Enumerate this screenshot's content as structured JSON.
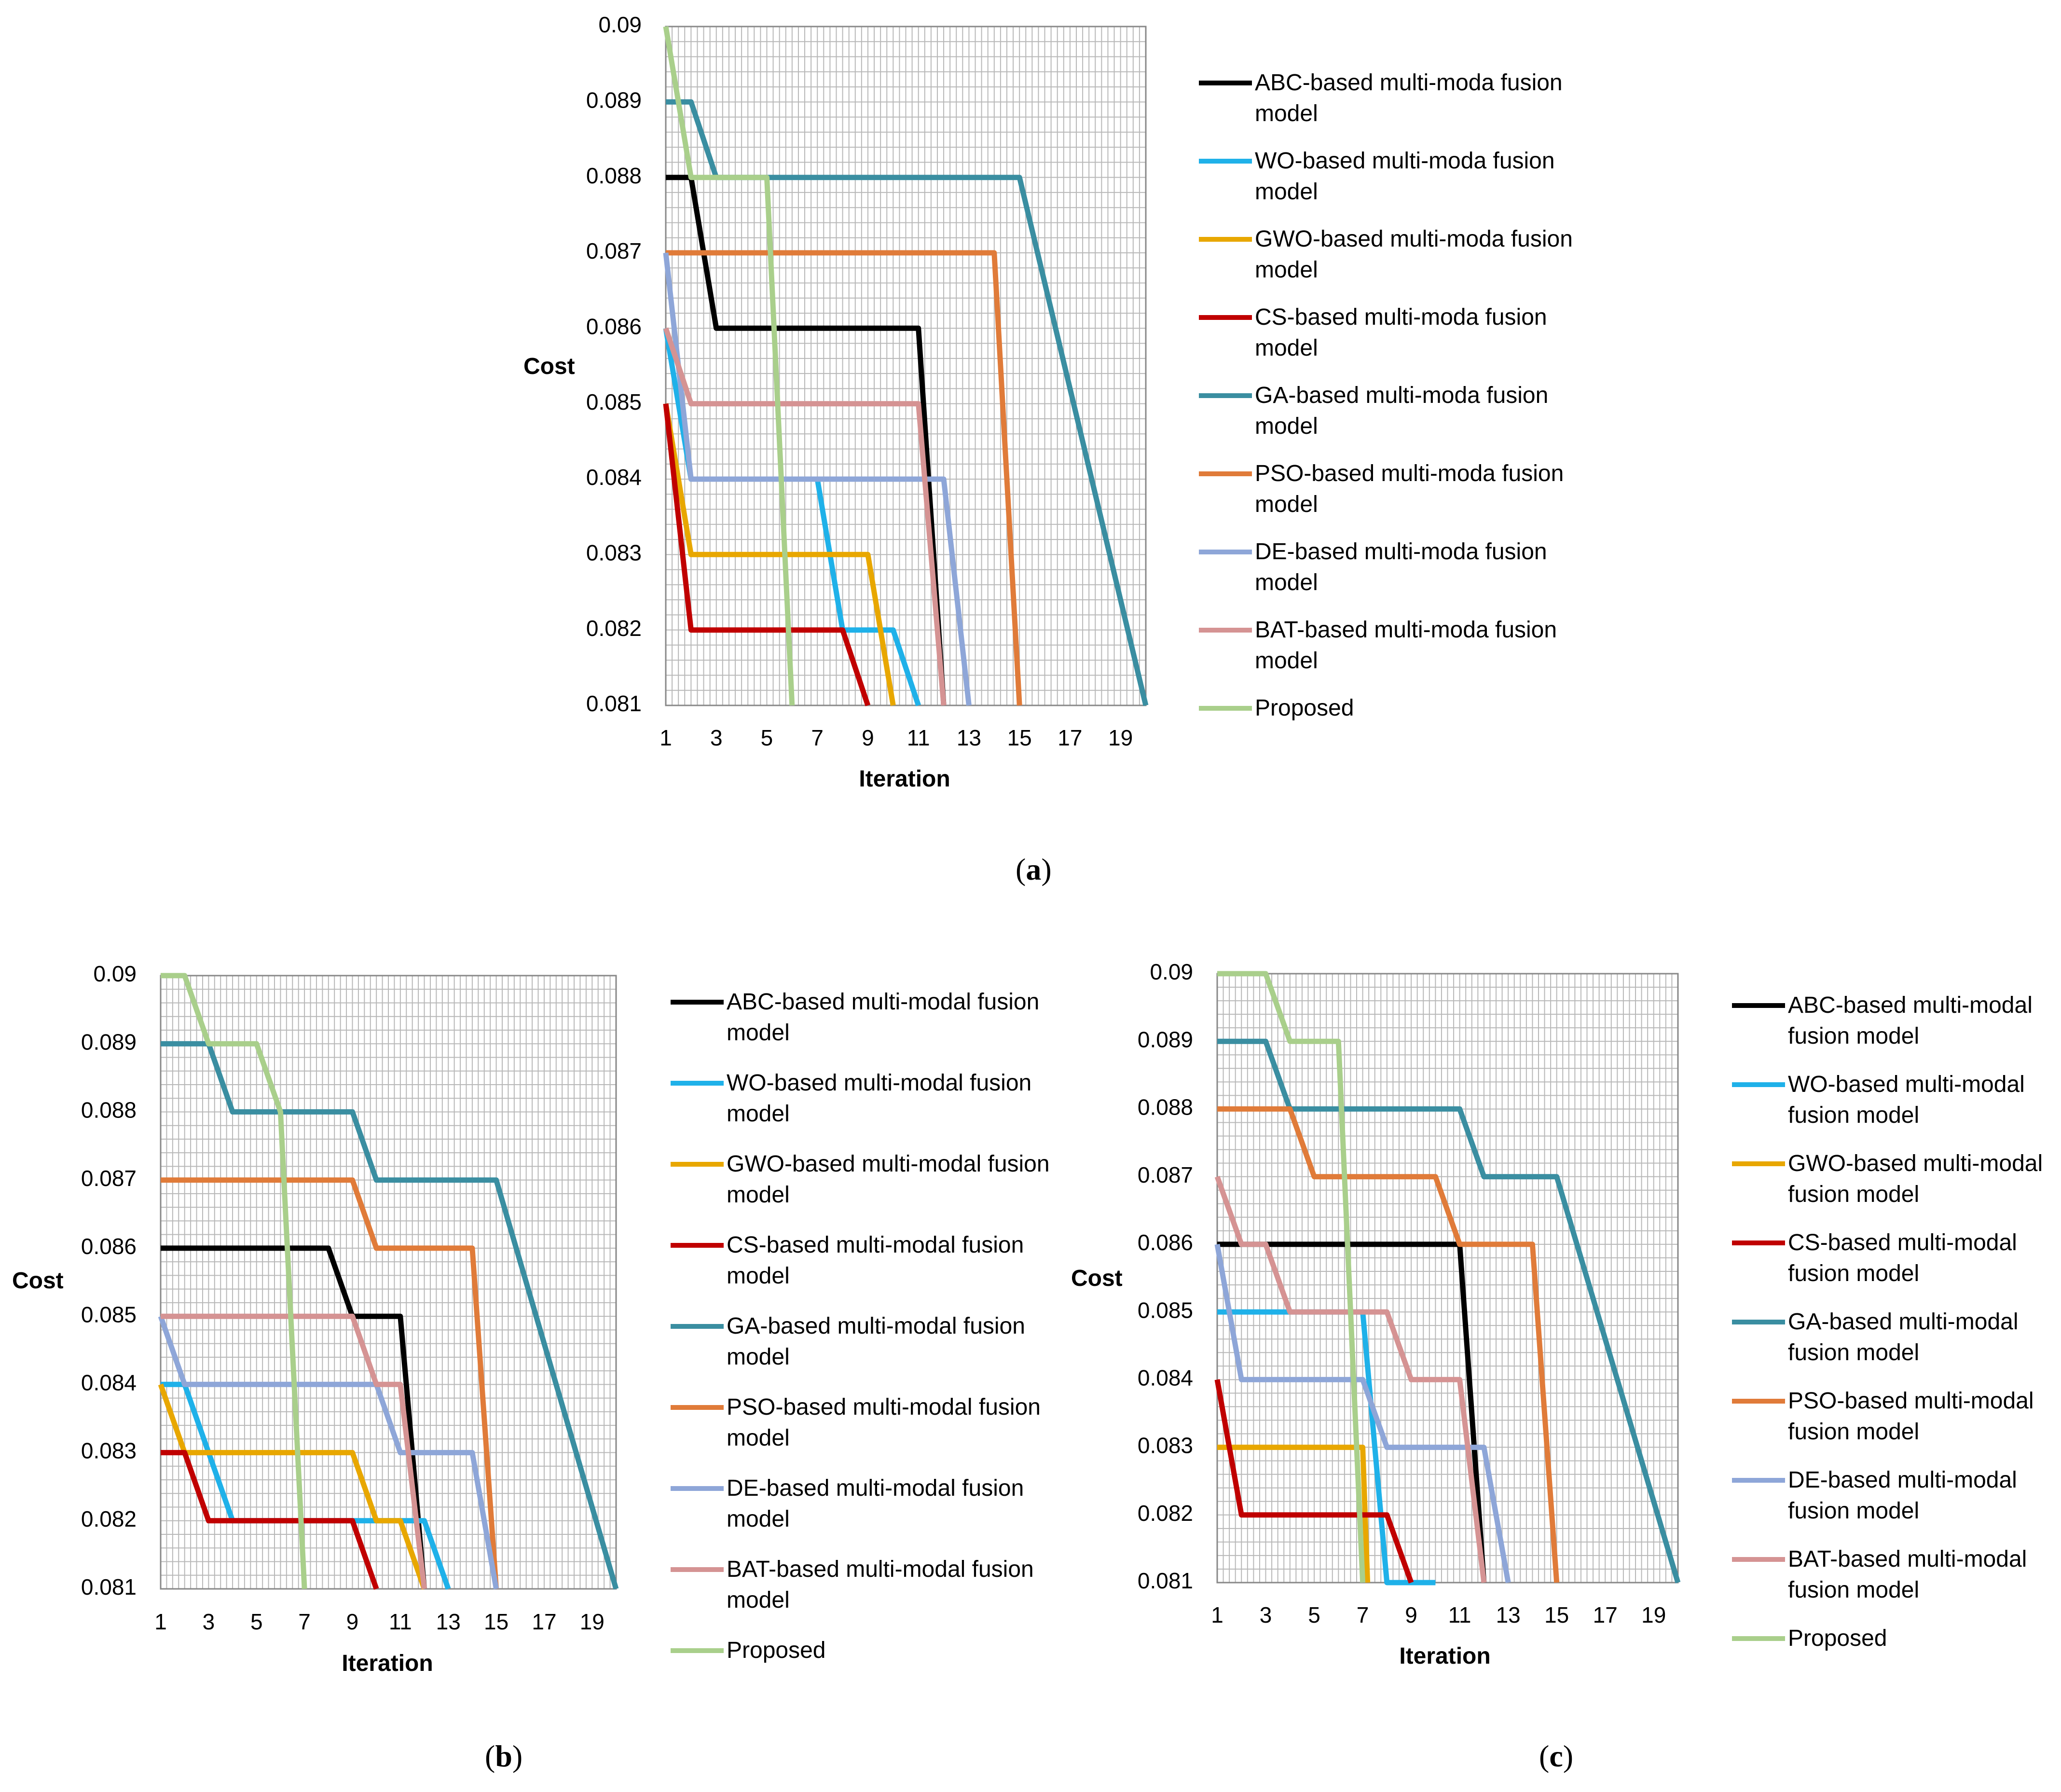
{
  "captions": [
    {
      "open": "(",
      "letter": "a",
      "close": ")"
    },
    {
      "open": "(",
      "letter": "b",
      "close": ")"
    },
    {
      "open": "(",
      "letter": "c",
      "close": ")"
    }
  ],
  "colors": {
    "abc": "#000000",
    "wo": "#1fb1e9",
    "gwo": "#e8a700",
    "cs": "#c00000",
    "ga": "#3a8ea1",
    "pso": "#e07b39",
    "de": "#8ea6d8",
    "bat": "#d59393",
    "proposed": "#a9cf8b",
    "grid": "#b8b8b8"
  },
  "chart_data": [
    {
      "type": "line",
      "panel": "a",
      "xlabel": "Iteration",
      "ylabel": "Cost",
      "ylim": [
        0.081,
        0.09
      ],
      "xlim": [
        1,
        20
      ],
      "yticks": [
        "0.09",
        "0.089",
        "0.088",
        "0.087",
        "0.086",
        "0.085",
        "0.084",
        "0.083",
        "0.082",
        "0.081"
      ],
      "xticks": [
        "1",
        "3",
        "5",
        "7",
        "9",
        "11",
        "13",
        "15",
        "17",
        "19"
      ],
      "legend_position": "right",
      "series": [
        {
          "key": "abc",
          "name": "ABC-based multi-moda fusion model",
          "points": [
            [
              1,
              0.088
            ],
            [
              2,
              0.088
            ],
            [
              3,
              0.086
            ],
            [
              11,
              0.086
            ],
            [
              12,
              0.081
            ]
          ]
        },
        {
          "key": "wo",
          "name": "WO-based multi-moda fusion model",
          "points": [
            [
              1,
              0.086
            ],
            [
              2,
              0.084
            ],
            [
              7,
              0.084
            ],
            [
              8,
              0.082
            ],
            [
              10,
              0.082
            ],
            [
              11,
              0.081
            ]
          ]
        },
        {
          "key": "gwo",
          "name": "GWO-based multi-moda fusion model",
          "points": [
            [
              1,
              0.085
            ],
            [
              2,
              0.083
            ],
            [
              9,
              0.083
            ],
            [
              10,
              0.081
            ]
          ]
        },
        {
          "key": "cs",
          "name": "CS-based multi-moda fusion model",
          "points": [
            [
              1,
              0.085
            ],
            [
              2,
              0.082
            ],
            [
              8,
              0.082
            ],
            [
              9,
              0.081
            ]
          ]
        },
        {
          "key": "ga",
          "name": "GA-based multi-moda fusion model",
          "points": [
            [
              1,
              0.089
            ],
            [
              2,
              0.089
            ],
            [
              3,
              0.088
            ],
            [
              15,
              0.088
            ],
            [
              20,
              0.081
            ]
          ]
        },
        {
          "key": "pso",
          "name": "PSO-based multi-moda fusion model",
          "points": [
            [
              1,
              0.087
            ],
            [
              14,
              0.087
            ],
            [
              15,
              0.081
            ]
          ]
        },
        {
          "key": "de",
          "name": "DE-based multi-moda fusion model",
          "points": [
            [
              1,
              0.087
            ],
            [
              2,
              0.084
            ],
            [
              12,
              0.084
            ],
            [
              13,
              0.081
            ]
          ]
        },
        {
          "key": "bat",
          "name": "BAT-based multi-moda fusion model",
          "points": [
            [
              1,
              0.086
            ],
            [
              2,
              0.085
            ],
            [
              11,
              0.085
            ],
            [
              12,
              0.081
            ]
          ]
        },
        {
          "key": "proposed",
          "name": "Proposed",
          "points": [
            [
              1,
              0.09
            ],
            [
              2,
              0.088
            ],
            [
              5,
              0.088
            ],
            [
              6,
              0.081
            ]
          ]
        }
      ]
    },
    {
      "type": "line",
      "panel": "b",
      "xlabel": "Iteration",
      "ylabel": "Cost",
      "ylim": [
        0.081,
        0.09
      ],
      "xlim": [
        1,
        20
      ],
      "yticks": [
        "0.09",
        "0.089",
        "0.088",
        "0.087",
        "0.086",
        "0.085",
        "0.084",
        "0.083",
        "0.082",
        "0.081"
      ],
      "xticks": [
        "1",
        "3",
        "5",
        "7",
        "9",
        "11",
        "13",
        "15",
        "17",
        "19"
      ],
      "legend_position": "right",
      "series": [
        {
          "key": "abc",
          "name": "ABC-based multi-modal fusion model",
          "points": [
            [
              1,
              0.086
            ],
            [
              8,
              0.086
            ],
            [
              9,
              0.085
            ],
            [
              11,
              0.085
            ],
            [
              12,
              0.081
            ]
          ]
        },
        {
          "key": "wo",
          "name": "WO-based multi-modal fusion model",
          "points": [
            [
              1,
              0.084
            ],
            [
              2,
              0.084
            ],
            [
              4,
              0.082
            ],
            [
              12,
              0.082
            ],
            [
              13,
              0.081
            ]
          ]
        },
        {
          "key": "gwo",
          "name": "GWO-based multi-modal fusion model",
          "points": [
            [
              1,
              0.084
            ],
            [
              2,
              0.083
            ],
            [
              9,
              0.083
            ],
            [
              10,
              0.082
            ],
            [
              11,
              0.082
            ],
            [
              12,
              0.081
            ]
          ]
        },
        {
          "key": "cs",
          "name": "CS-based multi-modal fusion model",
          "points": [
            [
              1,
              0.083
            ],
            [
              2,
              0.083
            ],
            [
              3,
              0.082
            ],
            [
              9,
              0.082
            ],
            [
              10,
              0.081
            ]
          ]
        },
        {
          "key": "ga",
          "name": "GA-based multi-modal fusion model",
          "points": [
            [
              1,
              0.089
            ],
            [
              3,
              0.089
            ],
            [
              4,
              0.088
            ],
            [
              9,
              0.088
            ],
            [
              10,
              0.087
            ],
            [
              15,
              0.087
            ],
            [
              20,
              0.081
            ]
          ]
        },
        {
          "key": "pso",
          "name": "PSO-based multi-modal fusion model",
          "points": [
            [
              1,
              0.087
            ],
            [
              9,
              0.087
            ],
            [
              10,
              0.086
            ],
            [
              14,
              0.086
            ],
            [
              15,
              0.081
            ]
          ]
        },
        {
          "key": "de",
          "name": "DE-based multi-modal fusion model",
          "points": [
            [
              1,
              0.085
            ],
            [
              2,
              0.084
            ],
            [
              10,
              0.084
            ],
            [
              11,
              0.083
            ],
            [
              14,
              0.083
            ],
            [
              15,
              0.081
            ]
          ]
        },
        {
          "key": "bat",
          "name": "BAT-based multi-modal fusion model",
          "points": [
            [
              1,
              0.085
            ],
            [
              9,
              0.085
            ],
            [
              10,
              0.084
            ],
            [
              11,
              0.084
            ],
            [
              12,
              0.081
            ]
          ]
        },
        {
          "key": "proposed",
          "name": "Proposed",
          "points": [
            [
              1,
              0.09
            ],
            [
              2,
              0.09
            ],
            [
              3,
              0.089
            ],
            [
              5,
              0.089
            ],
            [
              6,
              0.088
            ],
            [
              7,
              0.081
            ]
          ]
        }
      ]
    },
    {
      "type": "line",
      "panel": "c",
      "xlabel": "Iteration",
      "ylabel": "Cost",
      "ylim": [
        0.081,
        0.09
      ],
      "xlim": [
        1,
        20
      ],
      "yticks": [
        "0.09",
        "0.089",
        "0.088",
        "0.087",
        "0.086",
        "0.085",
        "0.084",
        "0.083",
        "0.082",
        "0.081"
      ],
      "xticks": [
        "1",
        "3",
        "5",
        "7",
        "9",
        "11",
        "13",
        "15",
        "17",
        "19"
      ],
      "legend_position": "right",
      "series": [
        {
          "key": "abc",
          "name": "ABC-based multi-modal fusion model",
          "points": [
            [
              1,
              0.086
            ],
            [
              11,
              0.086
            ],
            [
              12,
              0.081
            ]
          ]
        },
        {
          "key": "wo",
          "name": "WO-based multi-modal fusion model",
          "points": [
            [
              1,
              0.085
            ],
            [
              7,
              0.085
            ],
            [
              8,
              0.081
            ],
            [
              10,
              0.081
            ]
          ]
        },
        {
          "key": "gwo",
          "name": "GWO-based multi-modal fusion model",
          "points": [
            [
              1,
              0.083
            ],
            [
              7,
              0.083
            ],
            [
              7.2,
              0.081
            ]
          ]
        },
        {
          "key": "cs",
          "name": "CS-based multi-modal fusion model",
          "points": [
            [
              1,
              0.084
            ],
            [
              2,
              0.082
            ],
            [
              8,
              0.082
            ],
            [
              9,
              0.081
            ]
          ]
        },
        {
          "key": "ga",
          "name": "GA-based multi-modal fusion model",
          "points": [
            [
              1,
              0.089
            ],
            [
              3,
              0.089
            ],
            [
              4,
              0.088
            ],
            [
              11,
              0.088
            ],
            [
              12,
              0.087
            ],
            [
              15,
              0.087
            ],
            [
              20,
              0.081
            ]
          ]
        },
        {
          "key": "pso",
          "name": "PSO-based multi-modal fusion model",
          "points": [
            [
              1,
              0.088
            ],
            [
              4,
              0.088
            ],
            [
              5,
              0.087
            ],
            [
              10,
              0.087
            ],
            [
              11,
              0.086
            ],
            [
              14,
              0.086
            ],
            [
              15,
              0.081
            ]
          ]
        },
        {
          "key": "de",
          "name": "DE-based multi-modal fusion model",
          "points": [
            [
              1,
              0.086
            ],
            [
              2,
              0.084
            ],
            [
              7,
              0.084
            ],
            [
              8,
              0.083
            ],
            [
              12,
              0.083
            ],
            [
              13,
              0.081
            ]
          ]
        },
        {
          "key": "bat",
          "name": "BAT-based multi-modal fusion model",
          "points": [
            [
              1,
              0.087
            ],
            [
              2,
              0.086
            ],
            [
              3,
              0.086
            ],
            [
              4,
              0.085
            ],
            [
              8,
              0.085
            ],
            [
              9,
              0.084
            ],
            [
              11,
              0.084
            ],
            [
              12,
              0.081
            ]
          ]
        },
        {
          "key": "proposed",
          "name": "Proposed",
          "points": [
            [
              1,
              0.09
            ],
            [
              3,
              0.09
            ],
            [
              4,
              0.089
            ],
            [
              6,
              0.089
            ],
            [
              7,
              0.081
            ]
          ]
        }
      ]
    }
  ]
}
